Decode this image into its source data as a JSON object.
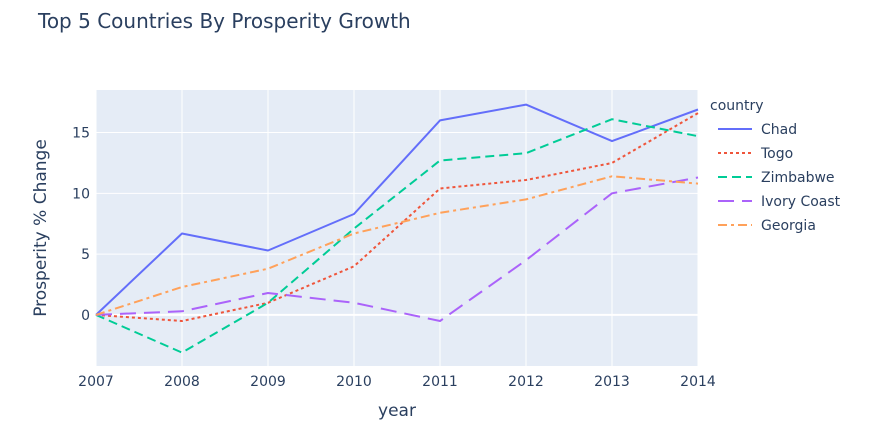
{
  "chart_data": {
    "type": "line",
    "title": "Top 5 Countries By Prosperity Growth",
    "xlabel": "year",
    "ylabel": "Prosperity % Change",
    "x": [
      2007,
      2008,
      2009,
      2010,
      2011,
      2012,
      2013,
      2014
    ],
    "xlim": [
      2007,
      2014
    ],
    "ylim": [
      -4.2,
      18.5
    ],
    "yticks": [
      0,
      5,
      10,
      15
    ],
    "grid": true,
    "legend_title": "country",
    "legend_position": "right",
    "series": [
      {
        "name": "Chad",
        "color": "#636efa",
        "dash": "solid",
        "values": [
          0,
          6.7,
          5.3,
          8.3,
          16.0,
          17.3,
          14.3,
          16.9
        ]
      },
      {
        "name": "Togo",
        "color": "#ef553b",
        "dash": "dot",
        "values": [
          0,
          -0.5,
          1.0,
          4.0,
          10.4,
          11.1,
          12.5,
          16.6
        ]
      },
      {
        "name": "Zimbabwe",
        "color": "#00cc96",
        "dash": "dash",
        "values": [
          0,
          -3.1,
          1.0,
          7.1,
          12.7,
          13.3,
          16.1,
          14.7
        ]
      },
      {
        "name": "Ivory Coast",
        "color": "#ab63fa",
        "dash": "longdash",
        "values": [
          0,
          0.3,
          1.8,
          1.0,
          -0.5,
          4.5,
          10.0,
          11.3
        ]
      },
      {
        "name": "Georgia",
        "color": "#ffa15a",
        "dash": "dashdot",
        "values": [
          0,
          2.3,
          3.8,
          6.7,
          8.4,
          9.5,
          11.4,
          10.8
        ]
      }
    ]
  }
}
